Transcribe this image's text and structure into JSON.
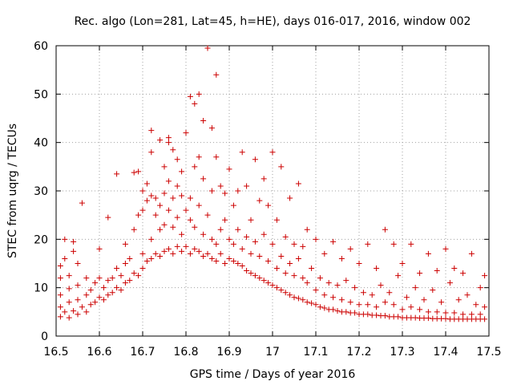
{
  "chart_data": {
    "type": "scatter",
    "title": "Rec. algo (Lon=281, Lat=45, h=HE), days 016-017, 2016, window 002",
    "xlabel": "GPS time / Days of year 2016",
    "ylabel": "STEC from uqrg / TECUs",
    "xlim": [
      16.5,
      17.5
    ],
    "ylim": [
      0,
      60
    ],
    "xticks": [
      "16.5",
      "16.6",
      "16.7",
      "16.8",
      "16.9",
      "17",
      "17.1",
      "17.2",
      "17.3",
      "17.4",
      "17.5"
    ],
    "yticks": [
      "0",
      "10",
      "20",
      "30",
      "40",
      "50",
      "60"
    ],
    "grid": true,
    "marker": "+",
    "color": "#cc0000",
    "series": [
      {
        "points": [
          [
            16.51,
            4.0
          ],
          [
            16.51,
            6.0
          ],
          [
            16.51,
            8.5
          ],
          [
            16.51,
            12.0
          ],
          [
            16.51,
            14.5
          ],
          [
            16.52,
            5.0
          ],
          [
            16.52,
            16.0
          ],
          [
            16.52,
            20.0
          ],
          [
            16.53,
            3.8
          ],
          [
            16.53,
            7.0
          ],
          [
            16.53,
            9.8
          ],
          [
            16.53,
            12.5
          ],
          [
            16.54,
            5.2
          ],
          [
            16.54,
            17.5
          ],
          [
            16.54,
            19.5
          ],
          [
            16.55,
            4.5
          ],
          [
            16.55,
            7.5
          ],
          [
            16.55,
            10.5
          ],
          [
            16.55,
            15.0
          ],
          [
            16.56,
            6.0
          ],
          [
            16.56,
            27.5
          ],
          [
            16.57,
            5.0
          ],
          [
            16.57,
            8.5
          ],
          [
            16.57,
            12.0
          ],
          [
            16.58,
            6.5
          ],
          [
            16.58,
            9.5
          ],
          [
            16.59,
            7.0
          ],
          [
            16.59,
            11.0
          ],
          [
            16.6,
            8.0
          ],
          [
            16.6,
            12.0
          ],
          [
            16.6,
            18.0
          ],
          [
            16.61,
            7.5
          ],
          [
            16.61,
            10.0
          ],
          [
            16.62,
            8.5
          ],
          [
            16.62,
            11.5
          ],
          [
            16.62,
            24.5
          ],
          [
            16.63,
            9.0
          ],
          [
            16.63,
            12.0
          ],
          [
            16.64,
            10.0
          ],
          [
            16.64,
            14.0
          ],
          [
            16.64,
            33.5
          ],
          [
            16.65,
            9.5
          ],
          [
            16.65,
            12.5
          ],
          [
            16.66,
            11.0
          ],
          [
            16.66,
            15.0
          ],
          [
            16.66,
            19.0
          ],
          [
            16.67,
            11.5
          ],
          [
            16.67,
            16.0
          ],
          [
            16.68,
            13.0
          ],
          [
            16.68,
            22.0
          ],
          [
            16.68,
            33.8
          ],
          [
            16.69,
            12.5
          ],
          [
            16.69,
            25.0
          ],
          [
            16.69,
            34.0
          ],
          [
            16.7,
            14.0
          ],
          [
            16.7,
            17.0
          ],
          [
            16.7,
            26.0
          ],
          [
            16.7,
            30.0
          ],
          [
            16.71,
            15.5
          ],
          [
            16.71,
            28.0
          ],
          [
            16.71,
            31.5
          ],
          [
            16.72,
            16.0
          ],
          [
            16.72,
            20.0
          ],
          [
            16.72,
            29.0
          ],
          [
            16.72,
            38.0
          ],
          [
            16.72,
            42.5
          ],
          [
            16.73,
            17.0
          ],
          [
            16.73,
            25.0
          ],
          [
            16.73,
            28.5
          ],
          [
            16.74,
            16.5
          ],
          [
            16.74,
            22.0
          ],
          [
            16.74,
            27.0
          ],
          [
            16.74,
            40.5
          ],
          [
            16.75,
            17.5
          ],
          [
            16.75,
            23.0
          ],
          [
            16.75,
            29.5
          ],
          [
            16.75,
            35.0
          ],
          [
            16.76,
            18.0
          ],
          [
            16.76,
            26.0
          ],
          [
            16.76,
            32.0
          ],
          [
            16.76,
            40.0
          ],
          [
            16.76,
            41.0
          ],
          [
            16.77,
            17.0
          ],
          [
            16.77,
            22.5
          ],
          [
            16.77,
            28.5
          ],
          [
            16.77,
            38.5
          ],
          [
            16.78,
            18.5
          ],
          [
            16.78,
            24.5
          ],
          [
            16.78,
            31.0
          ],
          [
            16.78,
            36.5
          ],
          [
            16.79,
            17.5
          ],
          [
            16.79,
            21.0
          ],
          [
            16.79,
            29.0
          ],
          [
            16.79,
            34.0
          ],
          [
            16.8,
            18.5
          ],
          [
            16.8,
            26.0
          ],
          [
            16.8,
            42.0
          ],
          [
            16.81,
            17.0
          ],
          [
            16.81,
            24.0
          ],
          [
            16.81,
            28.5
          ],
          [
            16.81,
            49.5
          ],
          [
            16.82,
            18.0
          ],
          [
            16.82,
            22.5
          ],
          [
            16.82,
            35.0
          ],
          [
            16.82,
            48.0
          ],
          [
            16.83,
            17.5
          ],
          [
            16.83,
            27.0
          ],
          [
            16.83,
            37.0
          ],
          [
            16.83,
            50.0
          ],
          [
            16.84,
            16.5
          ],
          [
            16.84,
            21.0
          ],
          [
            16.84,
            32.5
          ],
          [
            16.84,
            44.5
          ],
          [
            16.85,
            17.0
          ],
          [
            16.85,
            25.0
          ],
          [
            16.85,
            59.5
          ],
          [
            16.86,
            16.0
          ],
          [
            16.86,
            20.0
          ],
          [
            16.86,
            30.0
          ],
          [
            16.86,
            43.0
          ],
          [
            16.87,
            15.5
          ],
          [
            16.87,
            19.0
          ],
          [
            16.87,
            37.0
          ],
          [
            16.87,
            54.0
          ],
          [
            16.88,
            17.0
          ],
          [
            16.88,
            22.0
          ],
          [
            16.88,
            31.0
          ],
          [
            16.89,
            15.0
          ],
          [
            16.89,
            24.0
          ],
          [
            16.89,
            29.5
          ],
          [
            16.9,
            16.0
          ],
          [
            16.9,
            20.0
          ],
          [
            16.9,
            34.5
          ],
          [
            16.91,
            15.5
          ],
          [
            16.91,
            19.0
          ],
          [
            16.91,
            27.0
          ],
          [
            16.92,
            15.0
          ],
          [
            16.92,
            22.0
          ],
          [
            16.92,
            30.0
          ],
          [
            16.93,
            14.5
          ],
          [
            16.93,
            18.0
          ],
          [
            16.93,
            38.0
          ],
          [
            16.94,
            13.5
          ],
          [
            16.94,
            20.5
          ],
          [
            16.94,
            31.0
          ],
          [
            16.95,
            13.0
          ],
          [
            16.95,
            17.0
          ],
          [
            16.95,
            24.0
          ],
          [
            16.96,
            12.5
          ],
          [
            16.96,
            19.5
          ],
          [
            16.96,
            36.5
          ],
          [
            16.97,
            12.0
          ],
          [
            16.97,
            16.5
          ],
          [
            16.97,
            28.0
          ],
          [
            16.98,
            11.5
          ],
          [
            16.98,
            21.0
          ],
          [
            16.98,
            32.5
          ],
          [
            16.99,
            11.0
          ],
          [
            16.99,
            15.5
          ],
          [
            16.99,
            27.0
          ],
          [
            17.0,
            10.5
          ],
          [
            17.0,
            19.0
          ],
          [
            17.0,
            38.0
          ],
          [
            17.01,
            10.0
          ],
          [
            17.01,
            14.0
          ],
          [
            17.01,
            24.0
          ],
          [
            17.02,
            9.5
          ],
          [
            17.02,
            16.5
          ],
          [
            17.02,
            35.0
          ],
          [
            17.03,
            9.0
          ],
          [
            17.03,
            13.0
          ],
          [
            17.03,
            20.5
          ],
          [
            17.04,
            8.5
          ],
          [
            17.04,
            15.0
          ],
          [
            17.04,
            28.5
          ],
          [
            17.05,
            8.0
          ],
          [
            17.05,
            12.5
          ],
          [
            17.05,
            19.0
          ],
          [
            17.06,
            7.8
          ],
          [
            17.06,
            16.0
          ],
          [
            17.06,
            31.5
          ],
          [
            17.07,
            7.5
          ],
          [
            17.07,
            12.0
          ],
          [
            17.07,
            18.5
          ],
          [
            17.08,
            7.0
          ],
          [
            17.08,
            11.0
          ],
          [
            17.08,
            22.0
          ],
          [
            17.09,
            6.8
          ],
          [
            17.09,
            14.0
          ],
          [
            17.1,
            6.5
          ],
          [
            17.1,
            9.5
          ],
          [
            17.1,
            20.0
          ],
          [
            17.11,
            6.0
          ],
          [
            17.11,
            12.0
          ],
          [
            17.12,
            5.8
          ],
          [
            17.12,
            8.5
          ],
          [
            17.12,
            17.0
          ],
          [
            17.13,
            5.5
          ],
          [
            17.13,
            11.0
          ],
          [
            17.14,
            5.5
          ],
          [
            17.14,
            8.0
          ],
          [
            17.14,
            19.5
          ],
          [
            17.15,
            5.2
          ],
          [
            17.15,
            10.5
          ],
          [
            17.16,
            5.0
          ],
          [
            17.16,
            7.5
          ],
          [
            17.16,
            16.0
          ],
          [
            17.17,
            5.0
          ],
          [
            17.17,
            11.5
          ],
          [
            17.18,
            4.8
          ],
          [
            17.18,
            7.0
          ],
          [
            17.18,
            18.0
          ],
          [
            17.19,
            4.8
          ],
          [
            17.19,
            10.0
          ],
          [
            17.2,
            4.5
          ],
          [
            17.2,
            6.5
          ],
          [
            17.2,
            15.0
          ],
          [
            17.21,
            4.5
          ],
          [
            17.21,
            9.0
          ],
          [
            17.22,
            4.5
          ],
          [
            17.22,
            6.5
          ],
          [
            17.22,
            19.0
          ],
          [
            17.23,
            4.3
          ],
          [
            17.23,
            8.5
          ],
          [
            17.24,
            4.3
          ],
          [
            17.24,
            6.0
          ],
          [
            17.24,
            14.0
          ],
          [
            17.25,
            4.2
          ],
          [
            17.25,
            10.5
          ],
          [
            17.26,
            4.2
          ],
          [
            17.26,
            7.0
          ],
          [
            17.26,
            22.0
          ],
          [
            17.27,
            4.0
          ],
          [
            17.27,
            9.0
          ],
          [
            17.28,
            4.0
          ],
          [
            17.28,
            6.5
          ],
          [
            17.28,
            19.0
          ],
          [
            17.29,
            4.0
          ],
          [
            17.29,
            12.5
          ],
          [
            17.3,
            3.8
          ],
          [
            17.3,
            5.5
          ],
          [
            17.3,
            15.0
          ],
          [
            17.31,
            3.8
          ],
          [
            17.31,
            8.0
          ],
          [
            17.32,
            3.8
          ],
          [
            17.32,
            6.0
          ],
          [
            17.32,
            19.0
          ],
          [
            17.33,
            3.8
          ],
          [
            17.33,
            10.0
          ],
          [
            17.34,
            3.7
          ],
          [
            17.34,
            5.5
          ],
          [
            17.34,
            13.0
          ],
          [
            17.35,
            3.7
          ],
          [
            17.35,
            7.5
          ],
          [
            17.36,
            3.7
          ],
          [
            17.36,
            5.0
          ],
          [
            17.36,
            17.0
          ],
          [
            17.37,
            3.6
          ],
          [
            17.37,
            9.5
          ],
          [
            17.38,
            3.6
          ],
          [
            17.38,
            5.0
          ],
          [
            17.38,
            13.5
          ],
          [
            17.39,
            3.6
          ],
          [
            17.39,
            7.0
          ],
          [
            17.4,
            3.6
          ],
          [
            17.4,
            4.8
          ],
          [
            17.4,
            18.0
          ],
          [
            17.41,
            3.5
          ],
          [
            17.41,
            11.0
          ],
          [
            17.42,
            3.5
          ],
          [
            17.42,
            4.8
          ],
          [
            17.42,
            14.0
          ],
          [
            17.43,
            3.5
          ],
          [
            17.43,
            7.5
          ],
          [
            17.44,
            3.5
          ],
          [
            17.44,
            4.5
          ],
          [
            17.44,
            13.0
          ],
          [
            17.45,
            3.5
          ],
          [
            17.45,
            8.5
          ],
          [
            17.46,
            3.5
          ],
          [
            17.46,
            4.5
          ],
          [
            17.46,
            17.0
          ],
          [
            17.47,
            3.5
          ],
          [
            17.47,
            6.5
          ],
          [
            17.48,
            3.5
          ],
          [
            17.48,
            4.5
          ],
          [
            17.48,
            10.0
          ],
          [
            17.49,
            3.5
          ],
          [
            17.49,
            6.0
          ],
          [
            17.49,
            12.5
          ]
        ]
      }
    ]
  }
}
